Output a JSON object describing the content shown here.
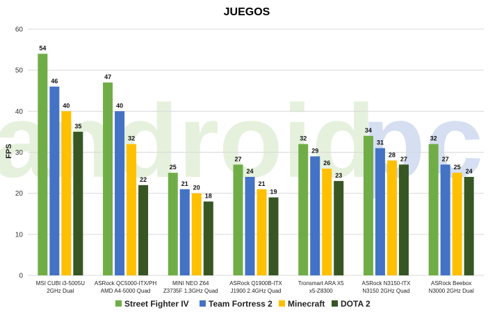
{
  "chart_data": {
    "type": "bar",
    "title": "JUEGOS",
    "ylabel": "FPS",
    "ylim": [
      0,
      60
    ],
    "yticks": [
      0,
      10,
      20,
      30,
      40,
      50,
      60
    ],
    "grid": true,
    "legend_position": "bottom",
    "categories": [
      [
        "MSI CUBI i3-5005U",
        "2GHz Dual"
      ],
      [
        "ASRock QC5000-ITX/PH",
        "AMD A4-5000 Quad"
      ],
      [
        "MINI NEO Z64",
        "Z3735F 1,3GHz Quad"
      ],
      [
        "ASRock Q1900B-ITX",
        "J1900 2.4GHz Quad"
      ],
      [
        "Tronsmart ARA X5",
        "x5-Z8300"
      ],
      [
        "ASRock N3150-ITX",
        "N3150 2GHz Quad"
      ],
      [
        "ASRock Beebox",
        "N3000 2GHz Dual"
      ]
    ],
    "series": [
      {
        "name": "Street Fighter IV",
        "color": "#70ad47",
        "values": [
          54,
          47,
          25,
          27,
          32,
          34,
          32
        ]
      },
      {
        "name": "Team Fortress 2",
        "color": "#4472c4",
        "values": [
          46,
          40,
          21,
          24,
          29,
          31,
          27
        ]
      },
      {
        "name": "Minecraft",
        "color": "#ffc000",
        "values": [
          40,
          32,
          20,
          21,
          26,
          28,
          25
        ]
      },
      {
        "name": "DOTA 2",
        "color": "#375623",
        "values": [
          35,
          22,
          18,
          19,
          23,
          27,
          24
        ]
      }
    ]
  },
  "watermark": {
    "part1": "android",
    "part2": "pc"
  }
}
